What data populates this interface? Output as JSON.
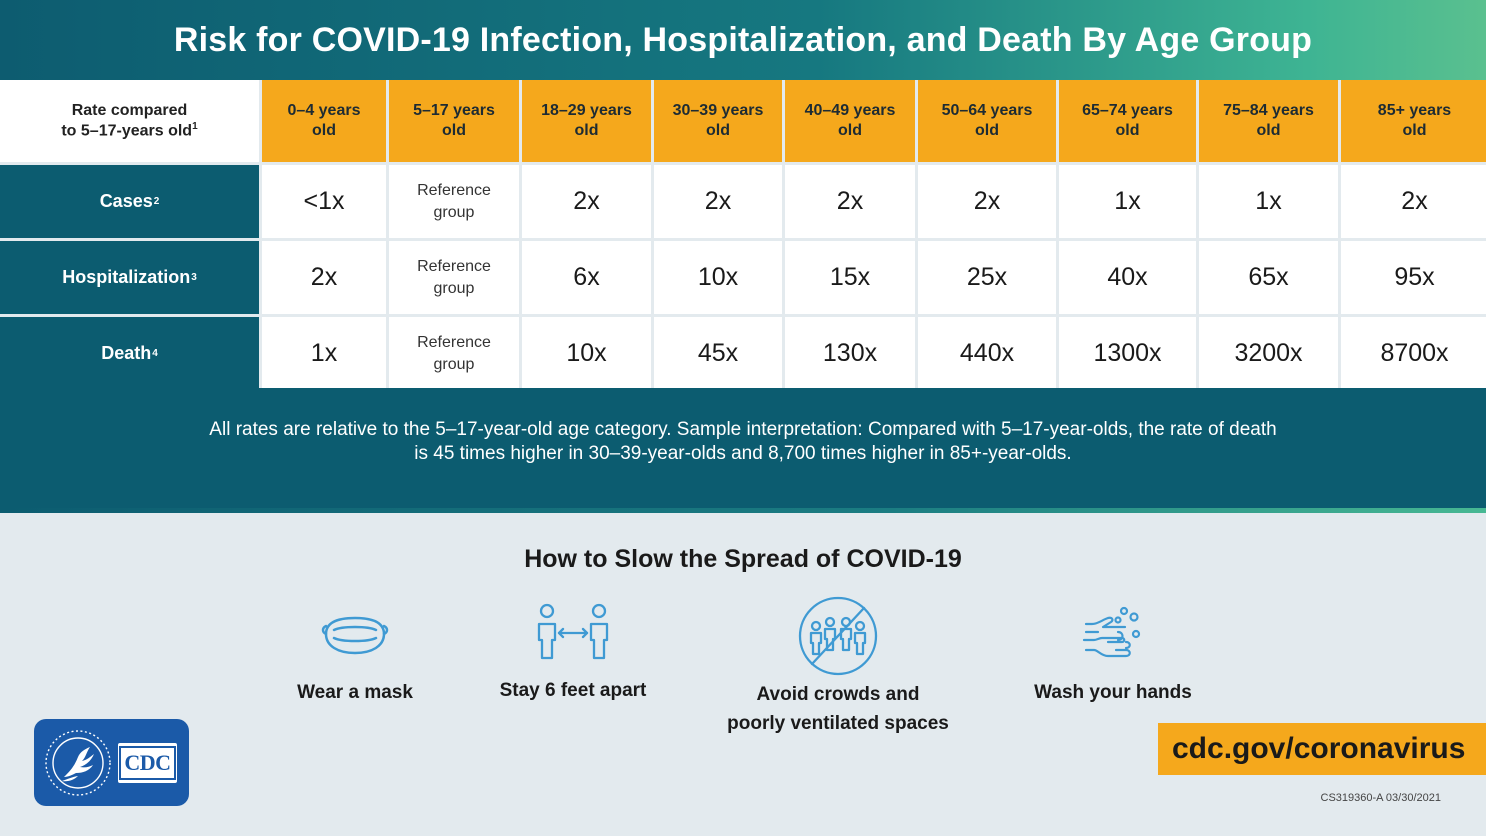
{
  "title": "Risk for COVID-19 Infection, Hospitalization, and Death By Age Group",
  "table": {
    "corner_line1": "Rate compared",
    "corner_line2": "to 5–17-years old",
    "corner_sup": "1",
    "columns": [
      {
        "line1": "0–4 years",
        "line2": "old"
      },
      {
        "line1": "5–17 years",
        "line2": "old"
      },
      {
        "line1": "18–29 years",
        "line2": "old"
      },
      {
        "line1": "30–39 years",
        "line2": "old"
      },
      {
        "line1": "40–49 years",
        "line2": "old"
      },
      {
        "line1": "50–64 years",
        "line2": "old"
      },
      {
        "line1": "65–74 years",
        "line2": "old"
      },
      {
        "line1": "75–84 years",
        "line2": "old"
      },
      {
        "line1": "85+ years",
        "line2": "old"
      }
    ],
    "rows": [
      {
        "label": "Cases",
        "sup": "2",
        "values": [
          "<1x",
          "Reference group",
          "2x",
          "2x",
          "2x",
          "2x",
          "1x",
          "1x",
          "2x"
        ]
      },
      {
        "label": "Hospitalization",
        "sup": "3",
        "values": [
          "2x",
          "Reference group",
          "6x",
          "10x",
          "15x",
          "25x",
          "40x",
          "65x",
          "95x"
        ]
      },
      {
        "label": "Death",
        "sup": "4",
        "values": [
          "1x",
          "Reference group",
          "10x",
          "45x",
          "130x",
          "440x",
          "1300x",
          "3200x",
          "8700x"
        ]
      }
    ]
  },
  "note": "All rates are relative to the 5–17-year-old age category. Sample interpretation: Compared with 5–17-year-olds, the rate of death is 45 times higher in 30–39-year-olds and 8,700 times higher in 85+-year-olds.",
  "howto": {
    "title": "How to Slow the Spread of COVID-19",
    "tips": [
      {
        "icon": "mask-icon",
        "label": "Wear a mask"
      },
      {
        "icon": "distance-icon",
        "label": "Stay 6 feet apart"
      },
      {
        "icon": "no-crowds-icon",
        "label_line1": "Avoid crowds and",
        "label_line2": "poorly ventilated spaces"
      },
      {
        "icon": "wash-hands-icon",
        "label": "Wash your hands"
      }
    ]
  },
  "logo": {
    "cdc_text": "CDC"
  },
  "url": "cdc.gov/coronavirus",
  "doc_id": "CS319360-A 03/30/2021",
  "colors": {
    "header_start": "#0d5c70",
    "header_end": "#5ac08f",
    "teal": "#0c5c70",
    "orange": "#f5a81c",
    "icon_blue": "#3f9ad3",
    "cdc_blue": "#1b5aa8"
  }
}
